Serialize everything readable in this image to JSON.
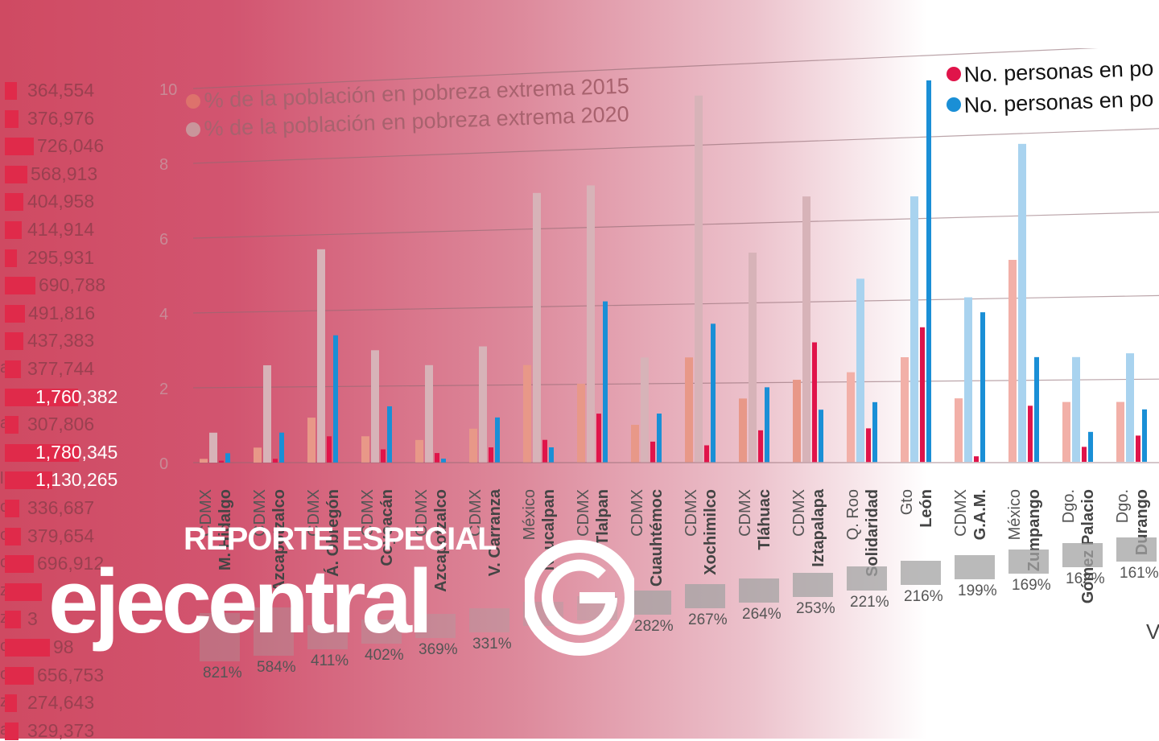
{
  "chart_data": {
    "type": "bar",
    "yticks": [
      "0",
      "2",
      "4",
      "6",
      "8",
      "10"
    ],
    "ylim": [
      0,
      10
    ],
    "legend_pct": [
      {
        "name": "% de la población en pobreza extrema 2015",
        "color": "#e07a6c"
      },
      {
        "name": "% de la población en pobreza extrema 2020",
        "color": "#c7a6a6"
      }
    ],
    "legend_count": [
      {
        "name": "No. personas en po",
        "color": "#e0144a"
      },
      {
        "name": "No. personas en po",
        "color": "#1a8fd6"
      }
    ],
    "categories": [
      {
        "state": "CDMX",
        "city": "M. Hidalgo",
        "p2015": 0.1,
        "p2020": 0.8,
        "n1": 0.05,
        "n2": 0.25
      },
      {
        "state": "CDMX",
        "city": "Azcapotzalco",
        "p2015": 0.4,
        "p2020": 2.6,
        "n1": 0.1,
        "n2": 0.8
      },
      {
        "state": "CDMX",
        "city": "Á. Obregón",
        "p2015": 1.2,
        "p2020": 5.7,
        "n1": 0.7,
        "n2": 3.4
      },
      {
        "state": "CDMX",
        "city": "Coyoacán",
        "p2015": 0.7,
        "p2020": 3.0,
        "n1": 0.35,
        "n2": 1.5
      },
      {
        "state": "CDMX",
        "city": "Azcapotzalco",
        "p2015": 0.6,
        "p2020": 2.6,
        "n1": 0.25,
        "n2": 0.1
      },
      {
        "state": "CDMX",
        "city": "V. Carranza",
        "p2015": 0.9,
        "p2020": 3.1,
        "n1": 0.4,
        "n2": 1.2
      },
      {
        "state": "México",
        "city": "Naucalpan",
        "p2015": 2.6,
        "p2020": 7.2,
        "n1": 0.6,
        "n2": 0.4
      },
      {
        "state": "CDMX",
        "city": "Tlalpan",
        "p2015": 2.1,
        "p2020": 7.4,
        "n1": 1.3,
        "n2": 4.3
      },
      {
        "state": "CDMX",
        "city": "Cuauhtémoc",
        "p2015": 1.0,
        "p2020": 2.8,
        "n1": 0.55,
        "n2": 1.3
      },
      {
        "state": "CDMX",
        "city": "Xochimilco",
        "p2015": 2.8,
        "p2020": 9.8,
        "n1": 0.45,
        "n2": 3.7
      },
      {
        "state": "CDMX",
        "city": "Tláhuac",
        "p2015": 1.7,
        "p2020": 5.6,
        "n1": 0.85,
        "n2": 2.0
      },
      {
        "state": "CDMX",
        "city": "Iztapalapa",
        "p2015": 2.2,
        "p2020": 7.1,
        "n1": 3.2,
        "n2": 1.4
      },
      {
        "state": "Q. Roo",
        "city": "Solidaridad",
        "p2015": 2.4,
        "p2020": 4.9,
        "n1": 0.9,
        "n2": 1.6
      },
      {
        "state": "Gto",
        "city": "León",
        "p2015": 2.8,
        "p2020": 7.1,
        "n1": 3.6,
        "n2": 10.2
      },
      {
        "state": "CDMX",
        "city": "G.A.M.",
        "p2015": 1.7,
        "p2020": 4.4,
        "n1": 0.15,
        "n2": 4.0
      },
      {
        "state": "México",
        "city": "Zumpango",
        "p2015": 5.4,
        "p2020": 8.5,
        "n1": 1.5,
        "n2": 2.8
      },
      {
        "state": "Dgo.",
        "city": "Gómez Palacio",
        "p2015": 1.6,
        "p2020": 2.8,
        "n1": 0.4,
        "n2": 0.8
      },
      {
        "state": "Dgo.",
        "city": "Durango",
        "p2015": 1.6,
        "p2020": 2.9,
        "n1": 0.7,
        "n2": 1.4
      }
    ],
    "increase_labels": [
      "821%",
      "584%",
      "411%",
      "402%",
      "369%",
      "331%",
      "",
      "",
      "282%",
      "267%",
      "264%",
      "253%",
      "221%",
      "216%",
      "199%",
      "169%",
      "162%",
      "161%"
    ]
  },
  "left_list": [
    {
      "value": "364,554",
      "bar": 0.09,
      "highlight": false,
      "stub": ""
    },
    {
      "value": "376,976",
      "bar": 0.1,
      "highlight": false,
      "stub": ""
    },
    {
      "value": "726,046",
      "bar": 0.22,
      "highlight": false,
      "stub": ""
    },
    {
      "value": "568,913",
      "bar": 0.17,
      "highlight": false,
      "stub": ""
    },
    {
      "value": "404,958",
      "bar": 0.14,
      "highlight": false,
      "stub": ""
    },
    {
      "value": "414,914",
      "bar": 0.13,
      "highlight": false,
      "stub": ""
    },
    {
      "value": "295,931",
      "bar": 0.09,
      "highlight": false,
      "stub": ""
    },
    {
      "value": "690,788",
      "bar": 0.23,
      "highlight": false,
      "stub": ""
    },
    {
      "value": "491,816",
      "bar": 0.15,
      "highlight": false,
      "stub": ""
    },
    {
      "value": "437,383",
      "bar": 0.14,
      "highlight": false,
      "stub": ""
    },
    {
      "value": "377,744",
      "bar": 0.12,
      "highlight": false,
      "stub": "a"
    },
    {
      "value": "1,760,382",
      "bar": 0.55,
      "highlight": true,
      "stub": ""
    },
    {
      "value": "307,806",
      "bar": 0.1,
      "highlight": false,
      "stub": "a"
    },
    {
      "value": "1,780,345",
      "bar": 0.56,
      "highlight": true,
      "stub": ""
    },
    {
      "value": "1,130,265",
      "bar": 0.36,
      "highlight": true,
      "stub": "l"
    },
    {
      "value": "336,687",
      "bar": 0.11,
      "highlight": false,
      "stub": "o"
    },
    {
      "value": "379,654",
      "bar": 0.12,
      "highlight": false,
      "stub": "o"
    },
    {
      "value": "696,912",
      "bar": 0.22,
      "highlight": false,
      "stub": "o"
    },
    {
      "value": "",
      "bar": 0.28,
      "highlight": false,
      "stub": "z"
    },
    {
      "value": "3",
      "bar": 0.12,
      "highlight": false,
      "stub": "z"
    },
    {
      "value": "98",
      "bar": 0.34,
      "highlight": false,
      "stub": "o"
    },
    {
      "value": "656,753",
      "bar": 0.22,
      "highlight": false,
      "stub": "o"
    },
    {
      "value": "274,643",
      "bar": 0.09,
      "highlight": false,
      "stub": "z"
    },
    {
      "value": "329,373",
      "bar": 0.1,
      "highlight": false,
      "stub": "a"
    }
  ],
  "logo": {
    "subtitle": "REPORTE ESPECIAL",
    "name": "ejecentral"
  },
  "cutoff_text": "V",
  "colors": {
    "bar_2015": "#e89888",
    "bar_2020": "#d7b3b8",
    "bar_n1": "#e0144a",
    "bar_n2": "#1a8fd6",
    "bar_2020_blue": "#a9d3ef",
    "bar_2015_blue": "#f2b0a8"
  }
}
